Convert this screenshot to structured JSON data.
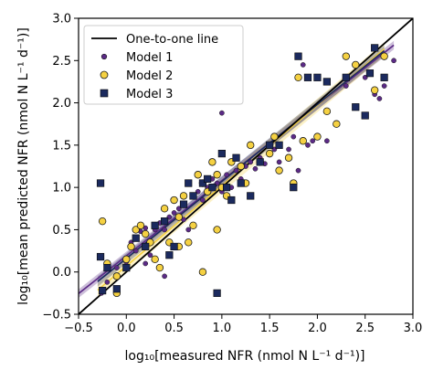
{
  "chart_data": {
    "type": "scatter",
    "xlabel": "log₁₀[measured NFR (nmol N L⁻¹ d⁻¹)]",
    "ylabel": "log₁₀[mean predicted NFR (nmol N L⁻¹ d⁻¹)]",
    "xlim": [
      -0.5,
      3.0
    ],
    "ylim": [
      -0.5,
      3.0
    ],
    "xticks": [
      -0.5,
      0.0,
      0.5,
      1.0,
      1.5,
      2.0,
      2.5,
      3.0
    ],
    "yticks": [
      -0.5,
      0.0,
      0.5,
      1.0,
      1.5,
      2.0,
      2.5,
      3.0
    ],
    "tick_labels_x": [
      "−0.5",
      "0.0",
      "0.5",
      "1.0",
      "1.5",
      "2.0",
      "2.5",
      "3.0"
    ],
    "tick_labels_y": [
      "−0.5",
      "0.0",
      "0.5",
      "1.0",
      "1.5",
      "2.0",
      "2.5",
      "3.0"
    ],
    "grid": false,
    "legend_position": "top-left",
    "one_to_one": {
      "name": "One-to-one line",
      "color": "#000000"
    },
    "series": [
      {
        "name": "Model 1",
        "marker": "circle-small",
        "color": "#5b2a86",
        "edge": "#1a1a1a",
        "fit": {
          "slope": 0.89,
          "intercept": 0.19,
          "x": [
            -0.5,
            2.8
          ],
          "band": 0.05
        },
        "points": [
          [
            -0.26,
            -0.25
          ],
          [
            -0.2,
            -0.12
          ],
          [
            -0.1,
            0.05
          ],
          [
            0.0,
            0.12
          ],
          [
            0.05,
            0.35
          ],
          [
            0.1,
            0.4
          ],
          [
            0.15,
            0.48
          ],
          [
            0.2,
            0.52
          ],
          [
            0.25,
            0.2
          ],
          [
            0.3,
            0.55
          ],
          [
            0.35,
            0.58
          ],
          [
            0.4,
            0.5
          ],
          [
            0.45,
            0.65
          ],
          [
            0.5,
            0.7
          ],
          [
            0.55,
            0.75
          ],
          [
            0.6,
            0.8
          ],
          [
            0.65,
            0.5
          ],
          [
            0.7,
            0.9
          ],
          [
            0.75,
            0.95
          ],
          [
            0.8,
            0.85
          ],
          [
            0.85,
            1.0
          ],
          [
            0.9,
            1.1
          ],
          [
            0.95,
            1.05
          ],
          [
            1.0,
            1.88
          ],
          [
            1.0,
            0.95
          ],
          [
            1.05,
            1.15
          ],
          [
            1.1,
            1.0
          ],
          [
            1.15,
            1.2
          ],
          [
            1.2,
            1.1
          ],
          [
            1.25,
            1.25
          ],
          [
            1.3,
            1.3
          ],
          [
            1.35,
            1.22
          ],
          [
            1.4,
            1.35
          ],
          [
            1.45,
            1.28
          ],
          [
            1.5,
            1.4
          ],
          [
            1.55,
            1.45
          ],
          [
            1.6,
            1.3
          ],
          [
            1.7,
            1.45
          ],
          [
            1.75,
            1.6
          ],
          [
            1.8,
            1.2
          ],
          [
            1.85,
            2.45
          ],
          [
            1.9,
            1.5
          ],
          [
            2.0,
            2.3
          ],
          [
            2.1,
            1.55
          ],
          [
            2.2,
            1.75
          ],
          [
            2.3,
            2.2
          ],
          [
            2.4,
            2.45
          ],
          [
            2.5,
            2.3
          ],
          [
            2.6,
            2.1
          ],
          [
            2.65,
            2.05
          ],
          [
            2.7,
            2.2
          ],
          [
            2.8,
            2.5
          ],
          [
            0.1,
            0.25
          ],
          [
            0.2,
            0.1
          ],
          [
            0.4,
            -0.05
          ],
          [
            1.95,
            1.55
          ],
          [
            0.3,
            0.5
          ],
          [
            0.6,
            0.62
          ]
        ]
      },
      {
        "name": "Model 2",
        "marker": "circle",
        "color": "#f5d142",
        "edge": "#1a1a1a",
        "fit": {
          "slope": 0.95,
          "intercept": 0.07,
          "x": [
            -0.3,
            2.7
          ],
          "band": 0.08
        },
        "points": [
          [
            -0.25,
            0.6
          ],
          [
            -0.2,
            0.1
          ],
          [
            -0.1,
            -0.05
          ],
          [
            0.0,
            0.15
          ],
          [
            0.05,
            0.3
          ],
          [
            0.1,
            0.5
          ],
          [
            0.2,
            0.45
          ],
          [
            0.25,
            0.35
          ],
          [
            0.3,
            0.15
          ],
          [
            0.4,
            0.75
          ],
          [
            0.45,
            0.35
          ],
          [
            0.5,
            0.85
          ],
          [
            0.55,
            0.65
          ],
          [
            0.6,
            0.9
          ],
          [
            0.65,
            0.35
          ],
          [
            0.7,
            0.55
          ],
          [
            0.75,
            1.15
          ],
          [
            0.8,
            1.05
          ],
          [
            0.85,
            0.95
          ],
          [
            0.9,
            1.3
          ],
          [
            0.95,
            0.5
          ],
          [
            1.0,
            1.0
          ],
          [
            1.05,
            0.9
          ],
          [
            1.1,
            1.3
          ],
          [
            1.2,
            1.25
          ],
          [
            1.25,
            1.05
          ],
          [
            1.3,
            1.5
          ],
          [
            1.4,
            1.3
          ],
          [
            1.5,
            1.4
          ],
          [
            1.55,
            1.6
          ],
          [
            1.6,
            1.2
          ],
          [
            1.7,
            1.35
          ],
          [
            1.75,
            1.05
          ],
          [
            1.8,
            2.3
          ],
          [
            2.0,
            1.6
          ],
          [
            2.1,
            1.9
          ],
          [
            2.2,
            1.75
          ],
          [
            2.3,
            2.55
          ],
          [
            2.4,
            2.45
          ],
          [
            2.6,
            2.15
          ],
          [
            2.7,
            2.55
          ],
          [
            0.55,
            0.3
          ],
          [
            0.15,
            0.55
          ],
          [
            0.35,
            0.05
          ],
          [
            0.8,
            0.0
          ],
          [
            0.95,
            1.15
          ],
          [
            -0.1,
            -0.25
          ],
          [
            1.85,
            1.55
          ]
        ]
      },
      {
        "name": "Model 3",
        "marker": "square",
        "color": "#1b2a5e",
        "edge": "#0a0a0a",
        "fit": {
          "slope": 0.91,
          "intercept": 0.16,
          "x": [
            -0.3,
            2.7
          ],
          "band": 0.06
        },
        "points": [
          [
            -0.27,
            1.05
          ],
          [
            -0.27,
            0.18
          ],
          [
            -0.25,
            -0.22
          ],
          [
            -0.2,
            0.05
          ],
          [
            -0.1,
            -0.2
          ],
          [
            0.0,
            0.05
          ],
          [
            0.1,
            0.4
          ],
          [
            0.2,
            0.3
          ],
          [
            0.3,
            0.55
          ],
          [
            0.4,
            0.6
          ],
          [
            0.5,
            0.3
          ],
          [
            0.6,
            0.8
          ],
          [
            0.7,
            0.9
          ],
          [
            0.8,
            1.05
          ],
          [
            0.9,
            1.0
          ],
          [
            0.95,
            -0.25
          ],
          [
            1.0,
            1.4
          ],
          [
            1.05,
            1.0
          ],
          [
            1.1,
            0.85
          ],
          [
            1.2,
            1.05
          ],
          [
            1.3,
            0.9
          ],
          [
            1.4,
            1.3
          ],
          [
            1.5,
            1.5
          ],
          [
            1.6,
            1.5
          ],
          [
            1.75,
            1.0
          ],
          [
            1.8,
            2.55
          ],
          [
            1.9,
            2.3
          ],
          [
            2.0,
            2.3
          ],
          [
            2.1,
            2.25
          ],
          [
            2.3,
            2.3
          ],
          [
            2.4,
            1.95
          ],
          [
            2.5,
            1.85
          ],
          [
            2.55,
            2.35
          ],
          [
            2.6,
            2.65
          ],
          [
            2.7,
            2.3
          ],
          [
            0.65,
            1.05
          ],
          [
            1.15,
            1.35
          ],
          [
            0.45,
            0.2
          ],
          [
            0.85,
            1.1
          ]
        ]
      }
    ]
  }
}
